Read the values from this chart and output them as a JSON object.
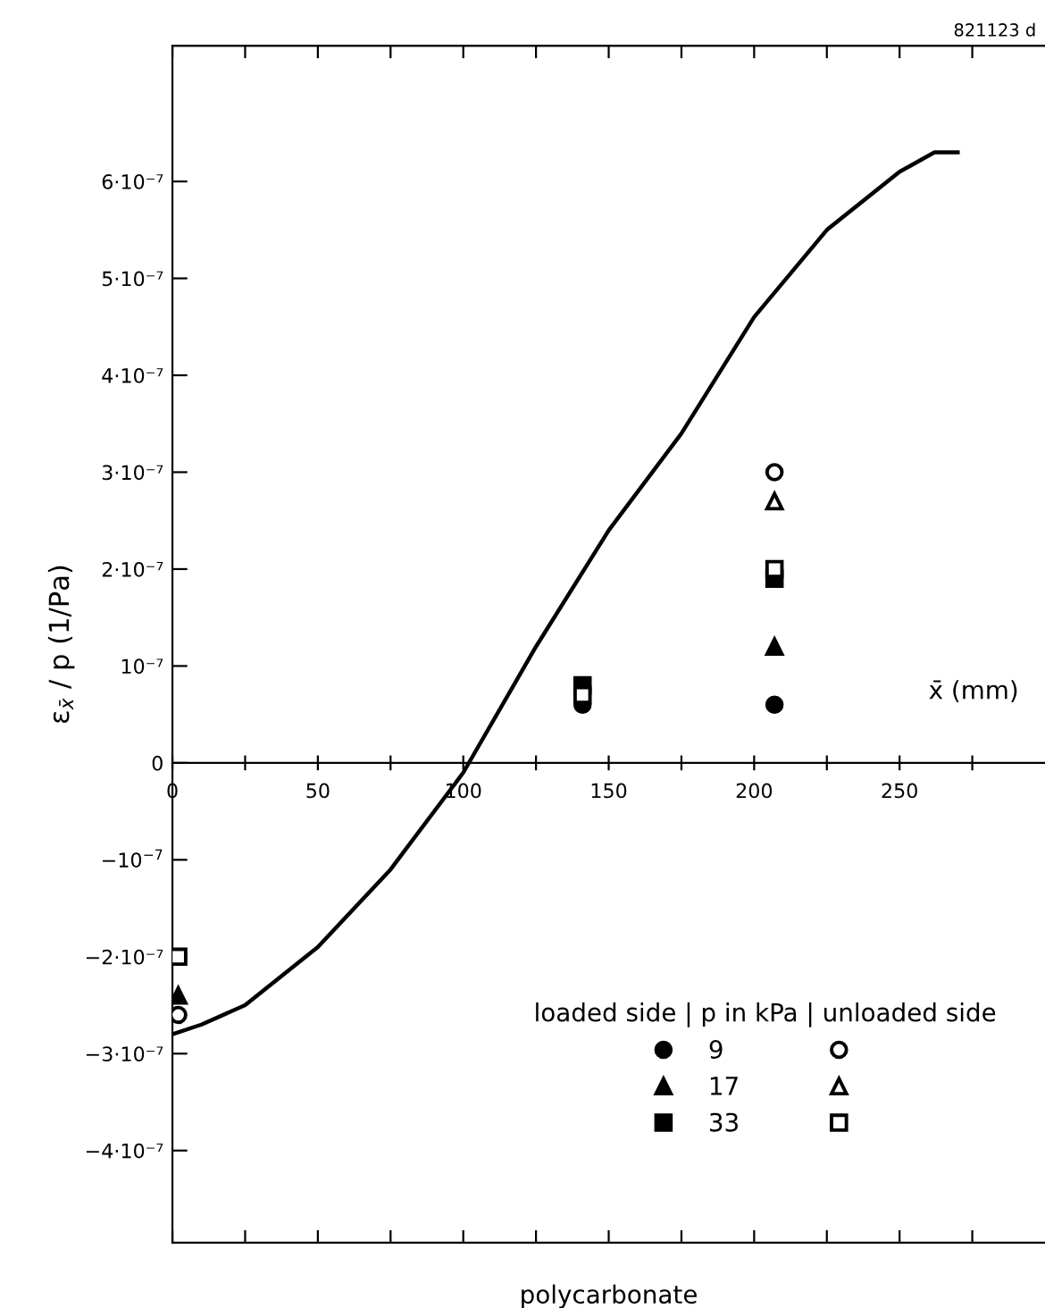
{
  "chart_data": {
    "type": "scatter",
    "xlabel": "polycarbonate",
    "ylabel": "ε$_{x̄}$ / p (1/Pa)",
    "legend_title": "loaded side | p in kPa | unloaded side",
    "annotations": [
      "x̄ (mm)",
      "821123 d"
    ],
    "xlim": [
      0,
      300
    ],
    "ylim": [
      -4.95e-07,
      7.4e-07
    ],
    "xticks": [
      0,
      {
        "value": 25,
        "label": null
      },
      50,
      {
        "value": 75,
        "label": null
      },
      100,
      {
        "value": 125,
        "label": null
      },
      150,
      {
        "value": 175,
        "label": null
      },
      200,
      {
        "value": 225,
        "label": null
      },
      250,
      {
        "value": 275,
        "label": null
      }
    ],
    "yticks": [
      {
        "value": -4e-07,
        "label": "−4·10⁻⁷"
      },
      {
        "value": -3e-07,
        "label": "−3·10⁻⁷"
      },
      {
        "value": -2e-07,
        "label": "−2·10⁻⁷"
      },
      {
        "value": -1e-07,
        "label": "−10$^{−7}$"
      },
      0,
      {
        "value": 1e-07,
        "label": "10⁻⁷"
      },
      {
        "value": 2e-07,
        "label": "2·10⁻⁷"
      },
      {
        "value": 3e-07,
        "label": "3·10⁻⁷"
      },
      {
        "value": 4e-07,
        "label": "4·10⁻⁷"
      },
      {
        "value": 5e-07,
        "label": "5·10⁻⁷"
      },
      {
        "value": 6e-07,
        "label": "6·10⁻⁷"
      }
    ],
    "grid": false,
    "legend": "bottom right",
    "series": [
      {
        "type": "line",
        "color": "#000000",
        "marker": "none",
        "line_style": "solid",
        "x": [
          0,
          10,
          25,
          50,
          75,
          100,
          125,
          150,
          175,
          200,
          225,
          250,
          262,
          270
        ],
        "values": [
          -2.8e-07,
          -2.7e-07,
          -2.5e-07,
          -1.9e-07,
          -1.1e-07,
          -1e-08,
          1.2e-07,
          2.4e-07,
          3.4e-07,
          4.6e-07,
          5.5e-07,
          6.1e-07,
          6.3e-07,
          6.3e-07
        ]
      },
      {
        "name": "9",
        "color": "#000000",
        "marker": "circle",
        "x": [
          141,
          207
        ],
        "values": [
          6e-08,
          6e-08
        ]
      },
      {
        "name": "17",
        "color": "#000000",
        "marker": "triangle",
        "x": [
          2,
          207
        ],
        "values": [
          -2.4e-07,
          1.2e-07
        ]
      },
      {
        "name": "33",
        "color": "#000000",
        "marker": "square",
        "x": [
          141,
          207
        ],
        "values": [
          8e-08,
          1.9e-07
        ]
      },
      {
        "color": "#000000",
        "marker": "circle",
        "x": [
          2,
          207
        ],
        "values": [
          -2.6e-07,
          3e-07
        ]
      },
      {
        "color": "#000000",
        "marker": "triangle",
        "x": [
          207
        ],
        "values": [
          2.7e-07
        ]
      },
      {
        "color": "#000000",
        "marker": "square",
        "x": [
          2,
          141,
          207
        ],
        "values": [
          -2e-07,
          7e-08,
          2e-07
        ]
      }
    ]
  }
}
